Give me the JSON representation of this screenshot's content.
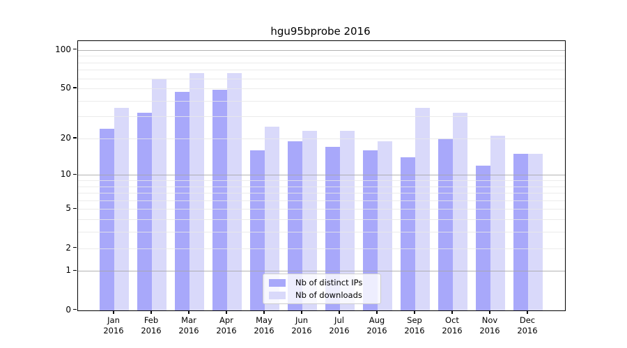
{
  "title": "hgu95bprobe 2016",
  "chart_data": {
    "type": "bar",
    "title": "hgu95bprobe 2016",
    "categories": [
      "Jan",
      "Feb",
      "Mar",
      "Apr",
      "May",
      "Jun",
      "Jul",
      "Aug",
      "Sep",
      "Oct",
      "Nov",
      "Dec"
    ],
    "year": "2016",
    "series": [
      {
        "name": "Nb of distinct IPs",
        "color": "#a8a8fa",
        "values": [
          24,
          32,
          47,
          49,
          16,
          19,
          17,
          16,
          14,
          20,
          12,
          15
        ]
      },
      {
        "name": "Nb of downloads",
        "color": "#d9d9fa",
        "values": [
          35,
          60,
          66,
          66,
          25,
          23,
          23,
          19,
          35,
          32,
          21,
          15
        ]
      }
    ],
    "xlabel": "",
    "ylabel": "",
    "yscale": "log1p",
    "ylim": [
      0,
      118
    ],
    "yticks": [
      0,
      1,
      2,
      5,
      10,
      20,
      50,
      100
    ],
    "minor_gridlines": [
      2,
      3,
      4,
      5,
      6,
      7,
      8,
      9,
      20,
      30,
      40,
      50,
      60,
      70,
      80,
      90
    ],
    "major_gridlines": [
      1,
      10,
      100
    ],
    "grid": "on",
    "legend_position": "lower center"
  }
}
